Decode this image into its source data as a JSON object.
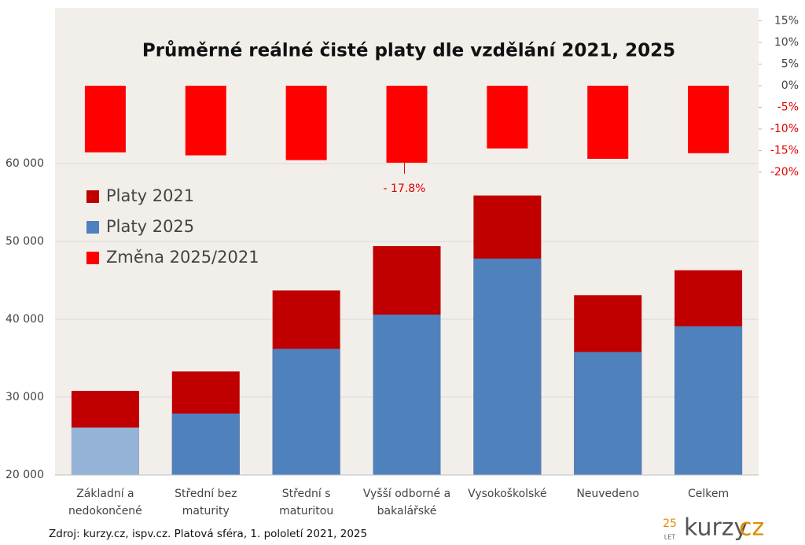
{
  "chart_data": {
    "type": "bar",
    "title": "Průměrné reálné čisté platy dle vzdělání 2021, 2025",
    "categories": [
      [
        "Základní a",
        "nedokončené"
      ],
      [
        "Střední bez",
        "maturity"
      ],
      [
        "Střední s",
        "maturitou"
      ],
      [
        "Vyšší odborné a",
        "bakalářské"
      ],
      [
        "Vysokoškolské"
      ],
      [
        "Neuvedeno"
      ],
      [
        "Celkem"
      ]
    ],
    "series": [
      {
        "name": "Platy 2021",
        "color": "#c00000",
        "values": [
          30800,
          33300,
          43700,
          49400,
          55900,
          43100,
          46300
        ]
      },
      {
        "name": "Platy 2025",
        "color": "#4f81bd",
        "colors": [
          "#95b3d7",
          "#4f81bd",
          "#4f81bd",
          "#4f81bd",
          "#4f81bd",
          "#4f81bd",
          "#4f81bd"
        ],
        "values": [
          26100,
          27900,
          36200,
          40600,
          47800,
          35800,
          39100
        ]
      },
      {
        "name": "Změna 2025/2021",
        "color": "#ff0000",
        "axis": "y2",
        "values": [
          -15.4,
          -16.1,
          -17.2,
          -17.8,
          -14.5,
          -16.9,
          -15.6
        ],
        "value_labels": [
          null,
          null,
          null,
          "- 17.8%",
          null,
          null,
          null
        ]
      }
    ],
    "ylim": [
      20000,
      80000
    ],
    "yticks": [
      {
        "value": 20000,
        "label": "20 000"
      },
      {
        "value": 30000,
        "label": "30 000"
      },
      {
        "value": 40000,
        "label": "40 000"
      },
      {
        "value": 50000,
        "label": "50 000"
      },
      {
        "value": 60000,
        "label": "60 000"
      }
    ],
    "y2lim": [
      -90,
      18
    ],
    "y2ticks": [
      {
        "value": 15,
        "label": "15%"
      },
      {
        "value": 10,
        "label": "10%"
      },
      {
        "value": 5,
        "label": "5%"
      },
      {
        "value": 0,
        "label": "0%"
      },
      {
        "value": -5,
        "label": "-5%"
      },
      {
        "value": -10,
        "label": "-10%"
      },
      {
        "value": -15,
        "label": "-15%"
      },
      {
        "value": -20,
        "label": "-20%"
      }
    ],
    "grid": true,
    "legend": "upper left",
    "source": "Zdroj: kurzy.cz, ispv.cz. Platová sféra, 1. pololetí 2021, 2025",
    "logo": {
      "years": "25",
      "years_word": "LET",
      "name": "kurzy",
      "suffix": "cz"
    }
  }
}
